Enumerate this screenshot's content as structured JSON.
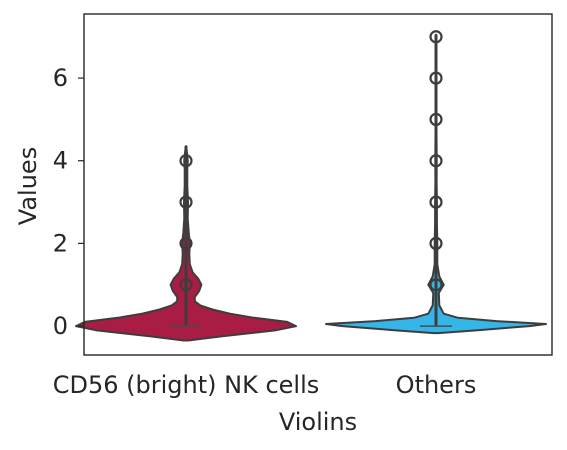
{
  "chart_data": {
    "type": "violin",
    "title": "",
    "xlabel": "Violins",
    "ylabel": "Values",
    "ylim": [
      -0.7,
      7.55
    ],
    "yticks": [
      0,
      2,
      4,
      6
    ],
    "grid": false,
    "legend": "none",
    "categories": [
      "CD56 (bright) NK cells",
      "Others"
    ],
    "colors": [
      "#A91D45",
      "#35B6E8"
    ],
    "outline_color": "#3d3d3d",
    "series": [
      {
        "category": "CD56 (bright) NK cells",
        "median": 0,
        "whisker": [
          0,
          4.35
        ],
        "outliers": [
          1,
          2,
          3,
          4
        ],
        "density": [
          [
            -0.35,
            0.02
          ],
          [
            -0.25,
            0.32
          ],
          [
            -0.1,
            0.82
          ],
          [
            0.0,
            1.0
          ],
          [
            0.1,
            0.92
          ],
          [
            0.2,
            0.62
          ],
          [
            0.3,
            0.4
          ],
          [
            0.4,
            0.24
          ],
          [
            0.5,
            0.13
          ],
          [
            0.6,
            0.08
          ],
          [
            0.7,
            0.08
          ],
          [
            0.85,
            0.12
          ],
          [
            1.0,
            0.14
          ],
          [
            1.15,
            0.11
          ],
          [
            1.3,
            0.06
          ],
          [
            1.5,
            0.035
          ],
          [
            1.75,
            0.03
          ],
          [
            2.0,
            0.035
          ],
          [
            2.25,
            0.025
          ],
          [
            2.6,
            0.015
          ],
          [
            3.0,
            0.018
          ],
          [
            3.4,
            0.012
          ],
          [
            3.8,
            0.012
          ],
          [
            4.0,
            0.016
          ],
          [
            4.2,
            0.008
          ],
          [
            4.35,
            0.003
          ]
        ]
      },
      {
        "category": "Others",
        "median": 0,
        "whisker": [
          0,
          7.05
        ],
        "outliers": [
          1,
          2,
          3,
          4,
          5,
          6,
          7
        ],
        "density": [
          [
            -0.17,
            0.02
          ],
          [
            -0.1,
            0.38
          ],
          [
            0.0,
            0.85
          ],
          [
            0.05,
            1.0
          ],
          [
            0.12,
            0.55
          ],
          [
            0.2,
            0.2
          ],
          [
            0.3,
            0.07
          ],
          [
            0.5,
            0.03
          ],
          [
            0.8,
            0.025
          ],
          [
            1.0,
            0.07
          ],
          [
            1.2,
            0.03
          ],
          [
            1.5,
            0.012
          ],
          [
            2.0,
            0.012
          ],
          [
            2.5,
            0.008
          ],
          [
            3.0,
            0.008
          ],
          [
            3.5,
            0.005
          ],
          [
            4.0,
            0.006
          ],
          [
            5.0,
            0.004
          ],
          [
            6.0,
            0.003
          ],
          [
            7.0,
            0.002
          ],
          [
            7.05,
            0.001
          ]
        ]
      }
    ]
  }
}
